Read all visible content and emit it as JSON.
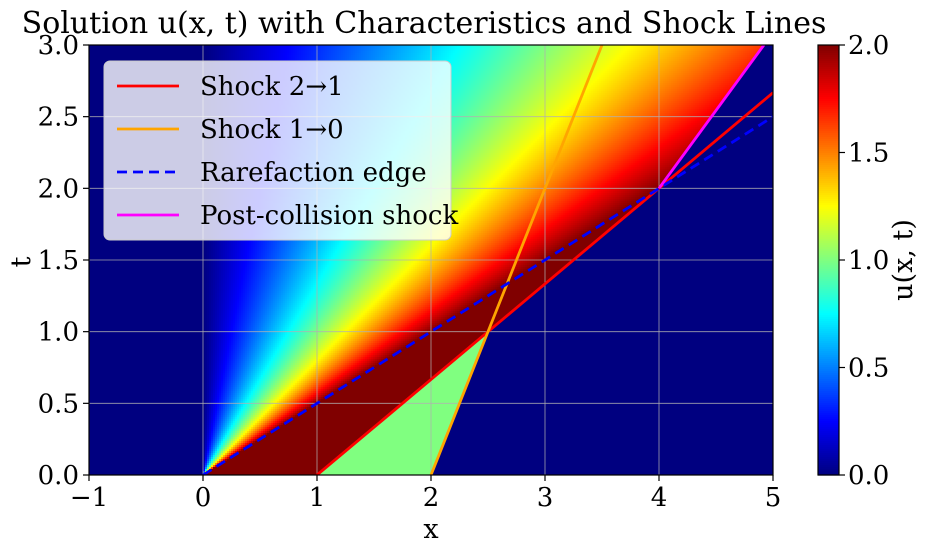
{
  "chart_data": {
    "type": "heatmap",
    "title": "Solution u(x, t) with Characteristics and Shock Lines",
    "xlabel": "x",
    "ylabel": "t",
    "xlim": [
      -1,
      5
    ],
    "ylim": [
      0,
      3
    ],
    "xticks": [
      "−1",
      "0",
      "1",
      "2",
      "3",
      "4",
      "5"
    ],
    "yticks": [
      "0.0",
      "0.5",
      "1.0",
      "1.5",
      "2.0",
      "2.5",
      "3.0"
    ],
    "grid": true,
    "colormap": "jet",
    "colorbar": {
      "label": "u(x, t)",
      "range": [
        0,
        2
      ],
      "ticks": [
        "0.0",
        "0.5",
        "1.0",
        "1.5",
        "2.0"
      ]
    },
    "regions": [
      {
        "description": "u = 0 for x < 0",
        "value": 0
      },
      {
        "description": "rarefaction fan from origin, u = x/t, up to edge x = 2t",
        "value_formula": "x/t"
      },
      {
        "description": "u = 2 between rarefaction edge and shock 2→1",
        "value": 2
      },
      {
        "description": "u = 1 between shock 2→1 and shock 1→0",
        "value": 1
      },
      {
        "description": "u = 0 right of shocks",
        "value": 0
      }
    ],
    "lines": [
      {
        "name": "Shock 2→1",
        "color": "#ff0000",
        "style": "solid",
        "points": [
          [
            1,
            0
          ],
          [
            2.5,
            1
          ],
          [
            4,
            2
          ],
          [
            5,
            2.667
          ]
        ]
      },
      {
        "name": "Shock 1→0",
        "color": "#ffa500",
        "style": "solid",
        "points": [
          [
            2,
            0
          ],
          [
            3.5,
            3
          ]
        ]
      },
      {
        "name": "Rarefaction edge",
        "color": "#0000ff",
        "style": "dashed",
        "points": [
          [
            0,
            0
          ],
          [
            5,
            2.5
          ]
        ]
      },
      {
        "name": "Post-collision shock",
        "color": "#ff00ff",
        "style": "solid",
        "points": [
          [
            4,
            2
          ],
          [
            4.92,
            3
          ]
        ]
      }
    ],
    "legend": {
      "placement": "upper-left",
      "entries": [
        "Shock 2→1",
        "Shock 1→0",
        "Rarefaction edge",
        "Post-collision shock"
      ]
    }
  }
}
